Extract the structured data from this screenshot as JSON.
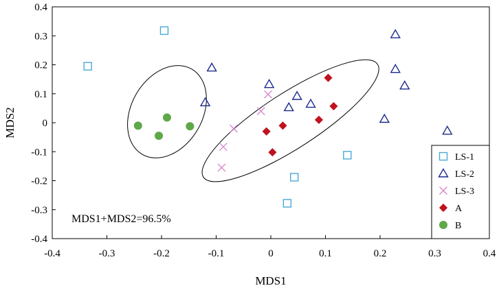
{
  "chart_data": {
    "type": "scatter",
    "title": "",
    "xlabel": "MDS1",
    "ylabel": "MDS2",
    "xlim": [
      -0.4,
      0.4
    ],
    "ylim": [
      -0.4,
      0.4
    ],
    "xticks": [
      "-0.4",
      "-0.3",
      "-0.2",
      "-0.1",
      "0",
      "0.1",
      "0.2",
      "0.3",
      "0.4"
    ],
    "yticks": [
      "-0.4",
      "-0.3",
      "-0.2",
      "-0.1",
      "0",
      "0.1",
      "0.2",
      "0.3",
      "0.4"
    ],
    "annotation": "MDS1+MDS2=96.5%",
    "legend_position": "bottom-right",
    "series": [
      {
        "name": "LS-1",
        "marker": "square-open",
        "color": "#4aa8d8",
        "points": [
          [
            -0.335,
            0.195
          ],
          [
            -0.195,
            0.318
          ],
          [
            0.14,
            -0.112
          ],
          [
            0.043,
            -0.188
          ],
          [
            0.03,
            -0.278
          ]
        ]
      },
      {
        "name": "LS-2",
        "marker": "triangle-open",
        "color": "#1c2a8c",
        "points": [
          [
            -0.108,
            0.19
          ],
          [
            -0.12,
            0.07
          ],
          [
            -0.003,
            0.133
          ],
          [
            0.048,
            0.092
          ],
          [
            0.033,
            0.053
          ],
          [
            0.073,
            0.065
          ],
          [
            0.228,
            0.305
          ],
          [
            0.228,
            0.185
          ],
          [
            0.245,
            0.128
          ],
          [
            0.208,
            0.013
          ],
          [
            0.323,
            -0.028
          ]
        ]
      },
      {
        "name": "LS-3",
        "marker": "x",
        "color": "#d98ad0",
        "points": [
          [
            -0.005,
            0.098
          ],
          [
            -0.018,
            0.04
          ],
          [
            -0.068,
            -0.02
          ],
          [
            -0.087,
            -0.083
          ],
          [
            -0.09,
            -0.155
          ]
        ]
      },
      {
        "name": "A",
        "marker": "diamond",
        "color": "#c0121f",
        "points": [
          [
            0.105,
            0.155
          ],
          [
            0.115,
            0.057
          ],
          [
            0.088,
            0.01
          ],
          [
            0.022,
            -0.01
          ],
          [
            -0.008,
            -0.03
          ],
          [
            0.003,
            -0.102
          ]
        ]
      },
      {
        "name": "B",
        "marker": "circle",
        "color": "#5fa84a",
        "points": [
          [
            -0.243,
            -0.01
          ],
          [
            -0.19,
            0.018
          ],
          [
            -0.148,
            -0.012
          ],
          [
            -0.205,
            -0.045
          ]
        ]
      }
    ],
    "ellipses": [
      {
        "name": "ellipse-B",
        "cx": -0.19,
        "cy": 0.038,
        "rx": 0.065,
        "ry": 0.17,
        "rotation_deg": 30
      },
      {
        "name": "ellipse-main",
        "cx": 0.036,
        "cy": 0.007,
        "rx": 0.19,
        "ry": 0.095,
        "rotation_deg": -33
      }
    ]
  }
}
